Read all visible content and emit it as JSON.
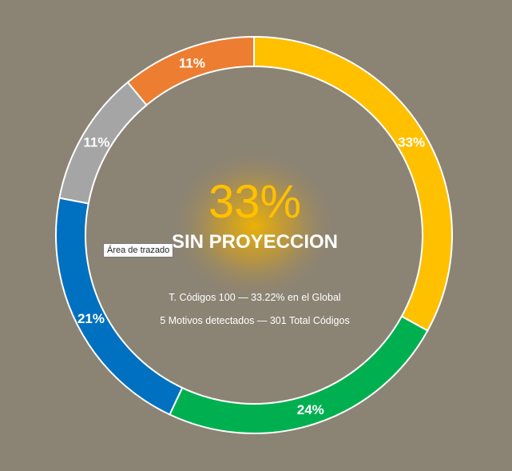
{
  "chart_data": {
    "type": "pie",
    "style": "doughnut",
    "categories": [
      "",
      "",
      "",
      "",
      ""
    ],
    "values": [
      33,
      24,
      21,
      11,
      11
    ],
    "labels": [
      "33%",
      "24%",
      "21%",
      "11%",
      "11%"
    ],
    "colors": [
      "#ffc000",
      "#00b050",
      "#0070c0",
      "#a5a5a5",
      "#ed7d31"
    ],
    "title": "",
    "xlabel": "",
    "ylabel": "",
    "center": {
      "big_value": "33%",
      "title": "SIN PROYECCION",
      "line1": "T. Códigos 100 — 33.22% en el Global",
      "line2": "5 Motivos detectados — 301 Total Códigos"
    },
    "grid": false,
    "legend": "none"
  },
  "tooltip": {
    "text": "Área de trazado"
  },
  "colors": {
    "background": "#8b8374",
    "accent": "#ffc000",
    "ring_border": "#ffffff",
    "glow": "#f0b400"
  }
}
